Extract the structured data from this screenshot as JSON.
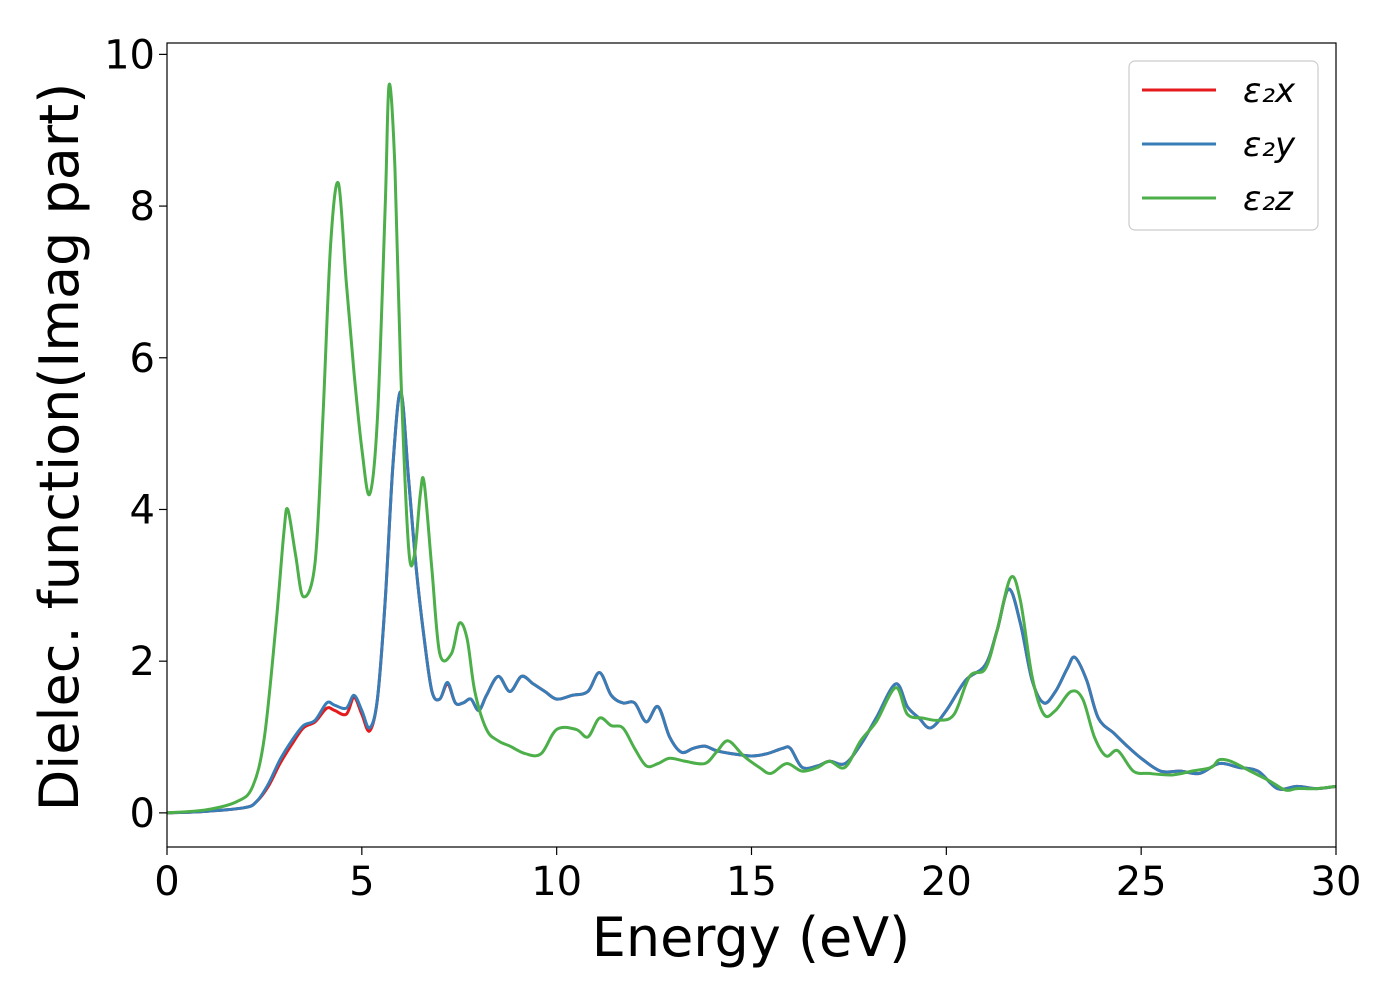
{
  "chart_data": {
    "type": "line",
    "title": "",
    "xlabel": "Energy (eV)",
    "ylabel": "Dielec. function(Imag part)",
    "xlim": [
      0,
      30
    ],
    "ylim": [
      -0.45,
      10.15
    ],
    "xticks": [
      0,
      5,
      10,
      15,
      20,
      25,
      30
    ],
    "yticks": [
      0,
      2,
      4,
      6,
      8,
      10
    ],
    "xtick_labels": [
      "0",
      "5",
      "10",
      "15",
      "20",
      "25",
      "30"
    ],
    "ytick_labels": [
      "0",
      "2",
      "4",
      "6",
      "8",
      "10"
    ],
    "grid": false,
    "legend_position": "top-right",
    "series": [
      {
        "name": "ε₂x",
        "color": "#e41a1c",
        "x": [
          0,
          1,
          2,
          2.3,
          2.6,
          2.9,
          3.2,
          3.5,
          3.8,
          4.1,
          4.3,
          4.6,
          4.8,
          5.0,
          5.2,
          5.4,
          5.6,
          5.8,
          6.0,
          6.2,
          6.4,
          6.6,
          6.8,
          7.0,
          7.2,
          7.4,
          7.6,
          7.8,
          8.0,
          8.2,
          8.5,
          8.8,
          9.1,
          9.4,
          9.7,
          10.0,
          10.4,
          10.8,
          11.1,
          11.4,
          11.7,
          12.0,
          12.3,
          12.6,
          12.9,
          13.2,
          13.5,
          13.8,
          14.1,
          14.5,
          15.0,
          15.4,
          15.8,
          16.0,
          16.3,
          16.7,
          17.0,
          17.4,
          17.8,
          18.2,
          18.7,
          19.0,
          19.3,
          19.6,
          20.0,
          20.5,
          21.0,
          21.3,
          21.6,
          21.9,
          22.2,
          22.5,
          22.8,
          23.1,
          23.3,
          23.6,
          23.9,
          24.3,
          24.6,
          25.0,
          25.5,
          26.0,
          26.5,
          27.0,
          27.5,
          28.0,
          28.5,
          29.0,
          29.5,
          30.0
        ],
        "y": [
          0.0,
          0.02,
          0.07,
          0.15,
          0.35,
          0.65,
          0.9,
          1.12,
          1.2,
          1.38,
          1.35,
          1.3,
          1.52,
          1.3,
          1.08,
          1.5,
          2.8,
          4.6,
          5.55,
          4.4,
          3.2,
          2.3,
          1.6,
          1.5,
          1.7,
          1.45,
          1.45,
          1.5,
          1.35,
          1.55,
          1.8,
          1.6,
          1.8,
          1.7,
          1.6,
          1.5,
          1.55,
          1.6,
          1.85,
          1.55,
          1.45,
          1.45,
          1.2,
          1.4,
          1.0,
          0.8,
          0.85,
          0.88,
          0.82,
          0.78,
          0.75,
          0.78,
          0.85,
          0.85,
          0.6,
          0.62,
          0.68,
          0.65,
          0.9,
          1.25,
          1.7,
          1.4,
          1.25,
          1.12,
          1.35,
          1.75,
          1.95,
          2.4,
          2.95,
          2.5,
          1.75,
          1.45,
          1.6,
          1.9,
          2.05,
          1.75,
          1.25,
          1.05,
          0.9,
          0.72,
          0.55,
          0.55,
          0.52,
          0.65,
          0.6,
          0.55,
          0.32,
          0.35,
          0.32,
          0.35
        ]
      },
      {
        "name": "ε₂y",
        "color": "#377eb8",
        "x": [
          0,
          1,
          2,
          2.3,
          2.6,
          2.9,
          3.2,
          3.5,
          3.8,
          4.1,
          4.3,
          4.6,
          4.8,
          5.0,
          5.2,
          5.4,
          5.6,
          5.8,
          6.0,
          6.2,
          6.4,
          6.6,
          6.8,
          7.0,
          7.2,
          7.4,
          7.6,
          7.8,
          8.0,
          8.2,
          8.5,
          8.8,
          9.1,
          9.4,
          9.7,
          10.0,
          10.4,
          10.8,
          11.1,
          11.4,
          11.7,
          12.0,
          12.3,
          12.6,
          12.9,
          13.2,
          13.5,
          13.8,
          14.1,
          14.5,
          15.0,
          15.4,
          15.8,
          16.0,
          16.3,
          16.7,
          17.0,
          17.4,
          17.8,
          18.2,
          18.7,
          19.0,
          19.3,
          19.6,
          20.0,
          20.5,
          21.0,
          21.3,
          21.6,
          21.9,
          22.2,
          22.5,
          22.8,
          23.1,
          23.3,
          23.6,
          23.9,
          24.3,
          24.6,
          25.0,
          25.5,
          26.0,
          26.5,
          27.0,
          27.5,
          28.0,
          28.5,
          29.0,
          29.5,
          30.0
        ],
        "y": [
          0.0,
          0.02,
          0.07,
          0.15,
          0.38,
          0.7,
          0.95,
          1.15,
          1.22,
          1.45,
          1.42,
          1.38,
          1.55,
          1.35,
          1.12,
          1.5,
          2.8,
          4.6,
          5.55,
          4.4,
          3.2,
          2.3,
          1.6,
          1.5,
          1.72,
          1.45,
          1.45,
          1.5,
          1.35,
          1.55,
          1.8,
          1.6,
          1.8,
          1.7,
          1.6,
          1.5,
          1.55,
          1.6,
          1.85,
          1.55,
          1.45,
          1.45,
          1.2,
          1.4,
          1.0,
          0.8,
          0.85,
          0.88,
          0.82,
          0.78,
          0.75,
          0.78,
          0.85,
          0.85,
          0.6,
          0.62,
          0.68,
          0.65,
          0.9,
          1.25,
          1.7,
          1.4,
          1.25,
          1.12,
          1.35,
          1.75,
          1.95,
          2.4,
          2.95,
          2.5,
          1.75,
          1.45,
          1.6,
          1.9,
          2.05,
          1.75,
          1.25,
          1.05,
          0.9,
          0.72,
          0.55,
          0.55,
          0.52,
          0.65,
          0.6,
          0.55,
          0.32,
          0.35,
          0.32,
          0.35
        ]
      },
      {
        "name": "ε₂z",
        "color": "#4daf4a",
        "x": [
          0,
          1,
          1.8,
          2.2,
          2.5,
          2.8,
          3.0,
          3.1,
          3.3,
          3.5,
          3.8,
          4.0,
          4.2,
          4.4,
          4.6,
          4.8,
          5.0,
          5.2,
          5.4,
          5.6,
          5.7,
          5.85,
          6.0,
          6.2,
          6.35,
          6.5,
          6.6,
          6.8,
          7.0,
          7.3,
          7.5,
          7.7,
          7.9,
          8.2,
          8.5,
          8.8,
          9.2,
          9.6,
          10.0,
          10.5,
          10.8,
          11.1,
          11.4,
          11.7,
          12.0,
          12.3,
          12.6,
          12.9,
          13.3,
          13.8,
          14.1,
          14.4,
          14.8,
          15.2,
          15.5,
          15.9,
          16.3,
          16.7,
          17.0,
          17.4,
          17.8,
          18.2,
          18.7,
          19.0,
          19.4,
          19.8,
          20.2,
          20.6,
          21.0,
          21.3,
          21.65,
          21.9,
          22.2,
          22.5,
          22.8,
          23.2,
          23.5,
          23.8,
          24.1,
          24.4,
          24.8,
          25.2,
          25.8,
          26.3,
          26.8,
          27.0,
          27.3,
          27.8,
          28.3,
          28.7,
          29.0,
          29.5,
          30.0
        ],
        "y": [
          0.0,
          0.04,
          0.15,
          0.35,
          1.0,
          2.5,
          3.7,
          4.0,
          3.4,
          2.85,
          3.3,
          5.2,
          7.5,
          8.3,
          7.0,
          5.8,
          4.8,
          4.2,
          5.2,
          8.0,
          9.6,
          8.5,
          5.8,
          3.5,
          3.4,
          4.2,
          4.35,
          3.2,
          2.1,
          2.1,
          2.5,
          2.3,
          1.6,
          1.1,
          0.95,
          0.88,
          0.78,
          0.78,
          1.1,
          1.1,
          1.0,
          1.25,
          1.15,
          1.12,
          0.85,
          0.62,
          0.65,
          0.72,
          0.68,
          0.65,
          0.8,
          0.95,
          0.75,
          0.6,
          0.52,
          0.65,
          0.55,
          0.6,
          0.68,
          0.6,
          0.95,
          1.2,
          1.65,
          1.3,
          1.25,
          1.22,
          1.3,
          1.8,
          1.9,
          2.4,
          3.1,
          2.8,
          1.8,
          1.3,
          1.35,
          1.6,
          1.5,
          1.0,
          0.75,
          0.82,
          0.55,
          0.52,
          0.5,
          0.55,
          0.6,
          0.7,
          0.68,
          0.55,
          0.42,
          0.3,
          0.32,
          0.32,
          0.35
        ]
      }
    ]
  }
}
